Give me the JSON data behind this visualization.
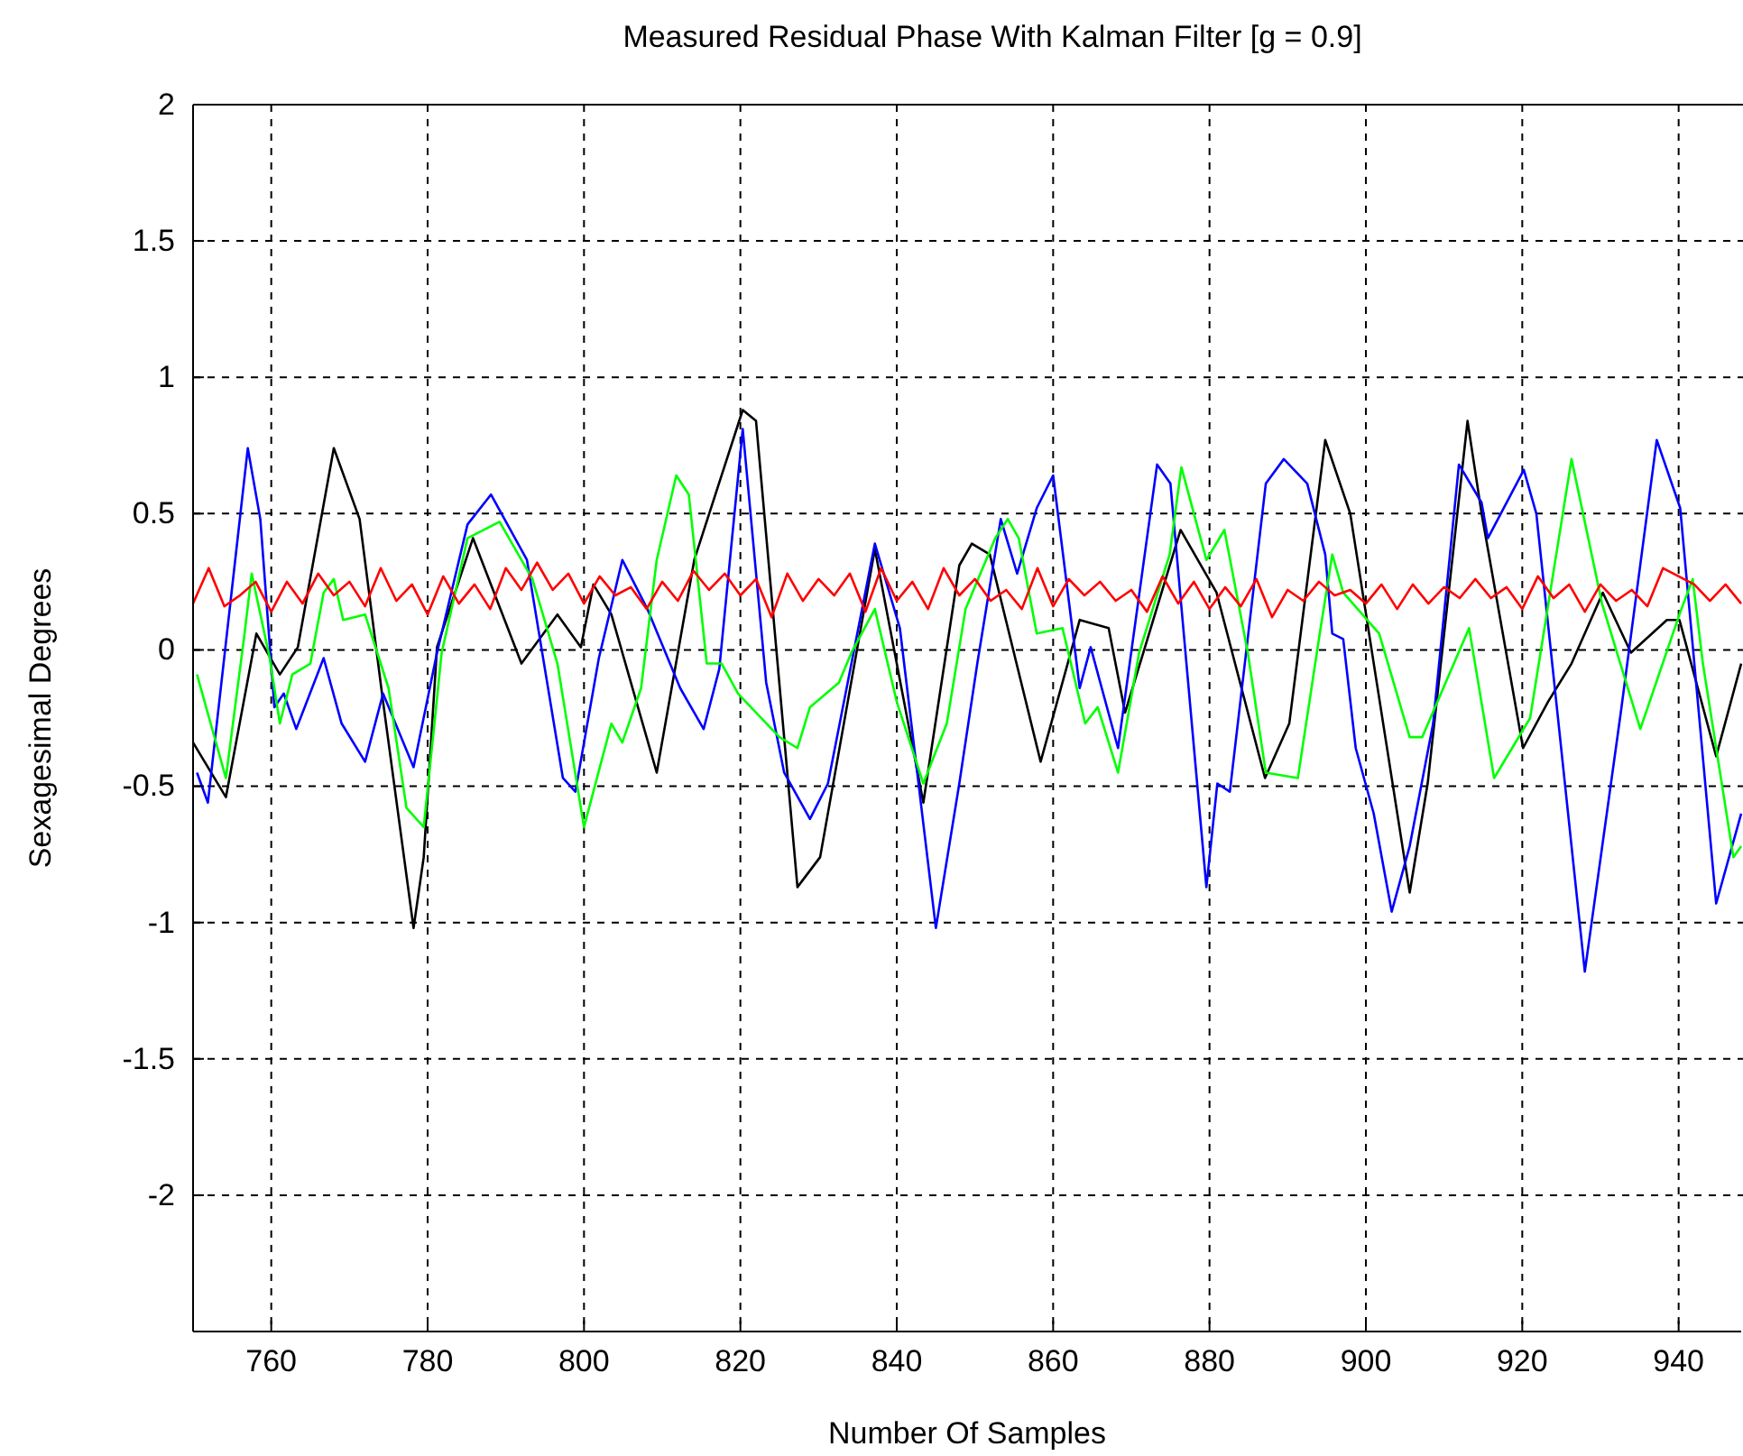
{
  "chart_data": {
    "type": "line",
    "title": "Measured Residual Phase With Kalman Filter [g = 0.9]",
    "xlabel": "Number Of Samples",
    "ylabel": "Sexagesimal Degrees",
    "xlim": [
      750,
      948
    ],
    "xticks": [
      760,
      780,
      800,
      820,
      840,
      860,
      880,
      900,
      920,
      940
    ],
    "ylim": [
      -2.5,
      2
    ],
    "yticks": [
      -2,
      -1.5,
      -1,
      -0.5,
      0,
      0.5,
      1,
      1.5,
      2
    ],
    "grid": true,
    "series": [
      {
        "color": "#000000",
        "x": [
          750,
          754.2,
          758.1,
          761.1,
          763.4,
          768,
          771.3,
          774.3,
          778.2,
          779.5,
          781.2,
          785.8,
          792,
          796.6,
          799.6,
          801.2,
          803.5,
          809.3,
          814.1,
          820.3,
          822,
          827.3,
          830.2,
          837.2,
          843.4,
          848,
          849.6,
          851.9,
          858.4,
          863.4,
          867.1,
          869.2,
          876.3,
          880.9,
          887.1,
          890.2,
          894.8,
          898,
          905.6,
          907.9,
          913,
          914.8,
          920.1,
          923.3,
          926.3,
          930.3,
          933.9,
          938.5,
          940.1,
          944.8,
          948
        ],
        "values": [
          -0.34,
          -0.54,
          0.06,
          -0.09,
          0.01,
          0.74,
          0.48,
          -0.19,
          -1.02,
          -0.76,
          0.01,
          0.41,
          -0.05,
          0.13,
          0.01,
          0.24,
          0.13,
          -0.45,
          0.33,
          0.88,
          0.84,
          -0.87,
          -0.76,
          0.37,
          -0.56,
          0.31,
          0.39,
          0.35,
          -0.41,
          0.11,
          0.08,
          -0.23,
          0.44,
          0.21,
          -0.47,
          -0.27,
          0.77,
          0.5,
          -0.89,
          -0.49,
          0.84,
          0.5,
          -0.36,
          -0.19,
          -0.05,
          0.21,
          -0.01,
          0.11,
          0.11,
          -0.39,
          -0.05
        ]
      },
      {
        "color": "#0000ff",
        "x": [
          750.5,
          751.9,
          757,
          758.6,
          760.4,
          761.6,
          763.2,
          766.7,
          769,
          772,
          774.3,
          778.2,
          781.2,
          785.1,
          788.1,
          792.7,
          797.3,
          798.9,
          801.9,
          804.9,
          808.1,
          812.3,
          815.3,
          817.3,
          820.3,
          823.3,
          825.6,
          828.9,
          831.2,
          837.2,
          840.4,
          845,
          848,
          850.3,
          853.3,
          855.4,
          857.9,
          860,
          863.4,
          864.8,
          868.3,
          873.3,
          875,
          879.6,
          881,
          882.6,
          887.2,
          889.5,
          892.5,
          894.8,
          895.7,
          897.1,
          898.7,
          901,
          903.3,
          905.6,
          908.6,
          911.9,
          914.8,
          915.6,
          920.2,
          921.8,
          928,
          932.6,
          937.2,
          940.2,
          944.8,
          948
        ],
        "values": [
          -0.45,
          -0.56,
          0.74,
          0.48,
          -0.21,
          -0.16,
          -0.29,
          -0.03,
          -0.27,
          -0.41,
          -0.16,
          -0.43,
          -0.01,
          0.46,
          0.57,
          0.33,
          -0.47,
          -0.52,
          -0.03,
          0.33,
          0.15,
          -0.14,
          -0.29,
          -0.07,
          0.81,
          -0.12,
          -0.45,
          -0.62,
          -0.49,
          0.39,
          0.08,
          -1.02,
          -0.49,
          -0.05,
          0.48,
          0.28,
          0.52,
          0.64,
          -0.14,
          0.01,
          -0.36,
          0.68,
          0.61,
          -0.87,
          -0.49,
          -0.52,
          0.61,
          0.7,
          0.61,
          0.35,
          0.06,
          0.04,
          -0.36,
          -0.6,
          -0.96,
          -0.72,
          -0.27,
          0.68,
          0.54,
          0.41,
          0.66,
          0.5,
          -1.18,
          -0.23,
          0.77,
          0.52,
          -0.93,
          -0.6
        ]
      },
      {
        "color": "#00ff00",
        "x": [
          750.5,
          754.2,
          756.5,
          757.5,
          759.8,
          761.1,
          762.7,
          765,
          766.7,
          768,
          769.2,
          772,
          775,
          777.3,
          779.5,
          781.8,
          785.1,
          789.2,
          793.4,
          796.6,
          800,
          803.5,
          804.9,
          807.3,
          809.3,
          811.8,
          813.4,
          815.7,
          817.6,
          819.7,
          822,
          825,
          827.3,
          828.9,
          832.6,
          834.2,
          837.2,
          840,
          843.4,
          846.4,
          848.8,
          852.6,
          854.2,
          855.6,
          857.9,
          861.2,
          864.1,
          865.7,
          868.3,
          871,
          874.9,
          876.4,
          879.6,
          881.9,
          884.9,
          887.2,
          891.3,
          894.1,
          895.7,
          897.1,
          901.7,
          905.6,
          907.2,
          913.2,
          916.4,
          921,
          926.3,
          930.2,
          935.1,
          940.1,
          941.8,
          943.1,
          947,
          948
        ],
        "values": [
          -0.09,
          -0.47,
          0.04,
          0.28,
          -0.03,
          -0.27,
          -0.09,
          -0.05,
          0.21,
          0.26,
          0.11,
          0.13,
          -0.14,
          -0.58,
          -0.65,
          -0.01,
          0.41,
          0.47,
          0.26,
          -0.05,
          -0.65,
          -0.27,
          -0.34,
          -0.14,
          0.33,
          0.64,
          0.57,
          -0.05,
          -0.05,
          -0.16,
          -0.23,
          -0.32,
          -0.36,
          -0.21,
          -0.12,
          -0.01,
          0.15,
          -0.19,
          -0.49,
          -0.27,
          0.15,
          0.41,
          0.48,
          0.41,
          0.06,
          0.08,
          -0.27,
          -0.21,
          -0.45,
          -0.01,
          0.35,
          0.67,
          0.33,
          0.44,
          -0.01,
          -0.45,
          -0.47,
          0.06,
          0.35,
          0.21,
          0.06,
          -0.32,
          -0.32,
          0.08,
          -0.47,
          -0.25,
          0.7,
          0.17,
          -0.29,
          0.13,
          0.26,
          -0.05,
          -0.76,
          -0.72
        ]
      },
      {
        "color": "#ff0000",
        "x": [
          750,
          752,
          754,
          756,
          758,
          760,
          762,
          764,
          766,
          768,
          770,
          772,
          774,
          776,
          778,
          780,
          782,
          784,
          786,
          788,
          790,
          792,
          794,
          796,
          798,
          800,
          802,
          804,
          806,
          808,
          810,
          812,
          814,
          816,
          818,
          820,
          822,
          824,
          826,
          828,
          830,
          832,
          834,
          836,
          838,
          840,
          842,
          844,
          846,
          848,
          850,
          852,
          854,
          856,
          858,
          860,
          862,
          864,
          866,
          868,
          870,
          872,
          874,
          876,
          878,
          880,
          882,
          884,
          886,
          888,
          890,
          892,
          894,
          896,
          898,
          900,
          902,
          904,
          906,
          908,
          910,
          912,
          914,
          916,
          918,
          920,
          922,
          924,
          926,
          928,
          930,
          932,
          934,
          936,
          938,
          940,
          942,
          944,
          946,
          948
        ],
        "values": [
          0.17,
          0.3,
          0.16,
          0.2,
          0.25,
          0.14,
          0.25,
          0.17,
          0.28,
          0.2,
          0.25,
          0.16,
          0.3,
          0.18,
          0.24,
          0.13,
          0.27,
          0.17,
          0.24,
          0.15,
          0.3,
          0.22,
          0.32,
          0.22,
          0.28,
          0.17,
          0.27,
          0.2,
          0.23,
          0.15,
          0.25,
          0.18,
          0.29,
          0.22,
          0.28,
          0.2,
          0.26,
          0.12,
          0.28,
          0.18,
          0.26,
          0.2,
          0.28,
          0.14,
          0.3,
          0.18,
          0.25,
          0.15,
          0.3,
          0.2,
          0.26,
          0.18,
          0.22,
          0.15,
          0.3,
          0.16,
          0.26,
          0.2,
          0.25,
          0.18,
          0.22,
          0.14,
          0.27,
          0.17,
          0.25,
          0.15,
          0.23,
          0.16,
          0.26,
          0.12,
          0.22,
          0.18,
          0.25,
          0.2,
          0.22,
          0.17,
          0.24,
          0.15,
          0.24,
          0.17,
          0.23,
          0.19,
          0.26,
          0.19,
          0.23,
          0.15,
          0.27,
          0.19,
          0.24,
          0.14,
          0.24,
          0.18,
          0.22,
          0.16,
          0.3,
          0.27,
          0.24,
          0.18,
          0.24,
          0.17
        ]
      }
    ]
  }
}
